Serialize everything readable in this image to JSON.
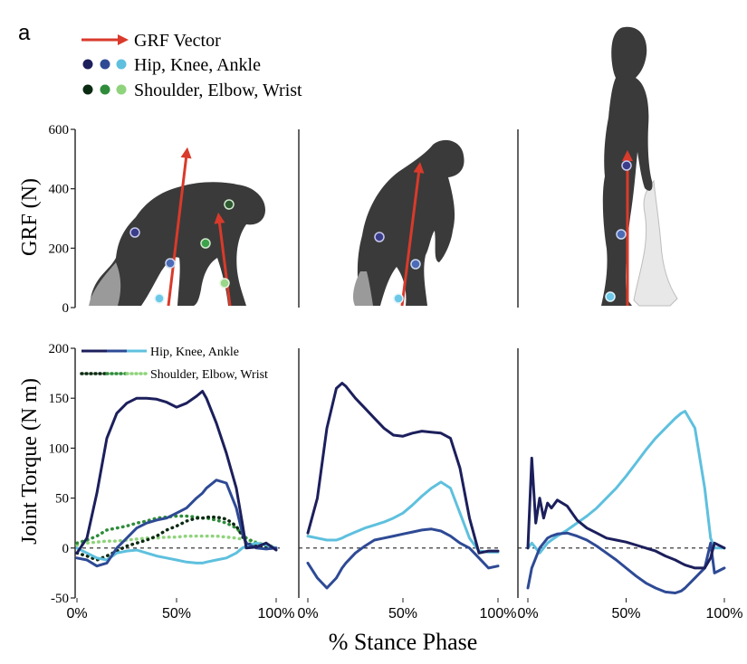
{
  "figure": {
    "panel_label": "a",
    "legend_top": {
      "grf": "GRF Vector",
      "lower_joints": "Hip, Knee, Ankle",
      "upper_joints": "Shoulder, Elbow, Wrist"
    },
    "colors": {
      "grf_arrow": "#d93a2b",
      "hip": "#1c1f5c",
      "knee": "#2e4a95",
      "ankle": "#5ec0de",
      "shoulder": "#0b2a12",
      "elbow": "#2e8c3a",
      "wrist": "#8fd37c",
      "silhouette": "#3a3a3a"
    }
  },
  "chart_data": [
    {
      "type": "line",
      "panel": "GRF - quadrupedal (chimpanzee, knuckle-walking)",
      "ylabel": "GRF (N)",
      "ylim": [
        0,
        600
      ],
      "yticks": [
        "0",
        "200",
        "400",
        "600"
      ],
      "grf_vectors": [
        {
          "limb": "hind",
          "value_N": 540
        },
        {
          "limb": "fore",
          "value_N": 320
        }
      ]
    },
    {
      "type": "line",
      "panel": "GRF - bent-hip bent-knee bipedal (chimpanzee)",
      "ylim": [
        0,
        600
      ],
      "grf_vectors": [
        {
          "limb": "hind",
          "value_N": 490
        }
      ]
    },
    {
      "type": "line",
      "panel": "GRF - upright bipedal (human)",
      "ylim": [
        0,
        600
      ],
      "grf_vectors": [
        {
          "limb": "hind",
          "value_N": 530
        }
      ]
    },
    {
      "type": "line",
      "panel": "Joint torque - quadrupedal",
      "ylabel": "Joint Torque (N m)",
      "ylim": [
        -50,
        200
      ],
      "yticks": [
        "-50",
        "0",
        "50",
        "100",
        "150",
        "200"
      ],
      "xticks": [
        "0%",
        "50%",
        "100%"
      ],
      "legend": [
        "Hip, Knee, Ankle",
        "Shoulder, Elbow, Wrist"
      ],
      "x": [
        0,
        5,
        10,
        15,
        20,
        25,
        30,
        35,
        40,
        45,
        50,
        55,
        60,
        63,
        65,
        70,
        75,
        80,
        83,
        85,
        90,
        95,
        100
      ],
      "series": [
        {
          "name": "Hip",
          "style": "solid",
          "values": [
            -5,
            10,
            55,
            110,
            135,
            145,
            150,
            150,
            149,
            146,
            141,
            145,
            152,
            157,
            150,
            125,
            95,
            60,
            25,
            0,
            1,
            5,
            -2
          ]
        },
        {
          "name": "Knee",
          "style": "solid",
          "values": [
            -10,
            -12,
            -18,
            -15,
            0,
            10,
            20,
            25,
            28,
            30,
            35,
            40,
            50,
            55,
            60,
            68,
            65,
            40,
            15,
            5,
            0,
            -1,
            0
          ]
        },
        {
          "name": "Ankle",
          "style": "solid",
          "values": [
            0,
            -5,
            -10,
            -12,
            -5,
            -3,
            -2,
            -5,
            -8,
            -10,
            -12,
            -14,
            -15,
            -15,
            -14,
            -12,
            -10,
            -5,
            0,
            2,
            5,
            3,
            0
          ]
        },
        {
          "name": "Shoulder",
          "style": "dotted",
          "values": [
            -5,
            -8,
            -12,
            -8,
            -3,
            2,
            5,
            8,
            12,
            18,
            22,
            27,
            30,
            30,
            31,
            31,
            29,
            22,
            12,
            5,
            2,
            0,
            0
          ]
        },
        {
          "name": "Elbow",
          "style": "dotted",
          "values": [
            5,
            8,
            12,
            18,
            20,
            22,
            25,
            27,
            30,
            31,
            32,
            32,
            31,
            30,
            30,
            28,
            25,
            20,
            14,
            10,
            5,
            2,
            0
          ]
        },
        {
          "name": "Wrist",
          "style": "dotted",
          "values": [
            3,
            5,
            6,
            7,
            7,
            8,
            9,
            10,
            10,
            11,
            11,
            12,
            12,
            12,
            12,
            12,
            11,
            10,
            9,
            8,
            6,
            3,
            1
          ]
        }
      ]
    },
    {
      "type": "line",
      "panel": "Joint torque - bent-hip bent-knee bipedal",
      "ylim": [
        -50,
        200
      ],
      "xticks": [
        "0%",
        "50%",
        "100%"
      ],
      "x": [
        0,
        5,
        10,
        15,
        18,
        20,
        25,
        30,
        35,
        40,
        45,
        50,
        55,
        60,
        65,
        70,
        75,
        80,
        85,
        90,
        95,
        100
      ],
      "series": [
        {
          "name": "Hip",
          "style": "solid",
          "values": [
            15,
            50,
            120,
            160,
            165,
            162,
            150,
            140,
            130,
            120,
            113,
            112,
            115,
            117,
            116,
            115,
            110,
            80,
            30,
            -5,
            -3,
            -3
          ]
        },
        {
          "name": "Knee",
          "style": "solid",
          "values": [
            -15,
            -30,
            -40,
            -30,
            -20,
            -15,
            -5,
            2,
            8,
            10,
            12,
            14,
            16,
            18,
            19,
            17,
            12,
            5,
            0,
            -10,
            -20,
            -18
          ]
        },
        {
          "name": "Ankle",
          "style": "solid",
          "values": [
            12,
            10,
            8,
            8,
            10,
            12,
            16,
            20,
            23,
            26,
            30,
            35,
            43,
            52,
            60,
            66,
            60,
            35,
            10,
            -3,
            -4,
            -4
          ]
        }
      ]
    },
    {
      "type": "line",
      "panel": "Joint torque - upright bipedal",
      "ylim": [
        -50,
        200
      ],
      "xticks": [
        "0%",
        "50%",
        "100%"
      ],
      "x": [
        0,
        2,
        4,
        6,
        8,
        10,
        12,
        15,
        20,
        25,
        30,
        35,
        40,
        45,
        50,
        55,
        60,
        65,
        70,
        75,
        78,
        80,
        85,
        90,
        93,
        95,
        100
      ],
      "series": [
        {
          "name": "Hip",
          "style": "solid",
          "values": [
            0,
            90,
            25,
            50,
            30,
            45,
            40,
            48,
            42,
            28,
            20,
            15,
            10,
            8,
            6,
            3,
            0,
            -3,
            -8,
            -12,
            -15,
            -17,
            -20,
            -20,
            -10,
            5,
            0
          ]
        },
        {
          "name": "Knee",
          "style": "solid",
          "values": [
            -40,
            -20,
            -10,
            0,
            5,
            10,
            12,
            14,
            15,
            12,
            8,
            2,
            -5,
            -12,
            -20,
            -28,
            -35,
            -40,
            -44,
            -45,
            -43,
            -40,
            -30,
            -20,
            5,
            -25,
            -20
          ]
        },
        {
          "name": "Ankle",
          "style": "solid",
          "values": [
            0,
            5,
            0,
            -5,
            0,
            5,
            8,
            12,
            18,
            25,
            32,
            40,
            50,
            60,
            72,
            85,
            98,
            110,
            120,
            130,
            135,
            137,
            120,
            60,
            10,
            0,
            0
          ]
        }
      ]
    }
  ],
  "xlabel": "% Stance Phase"
}
